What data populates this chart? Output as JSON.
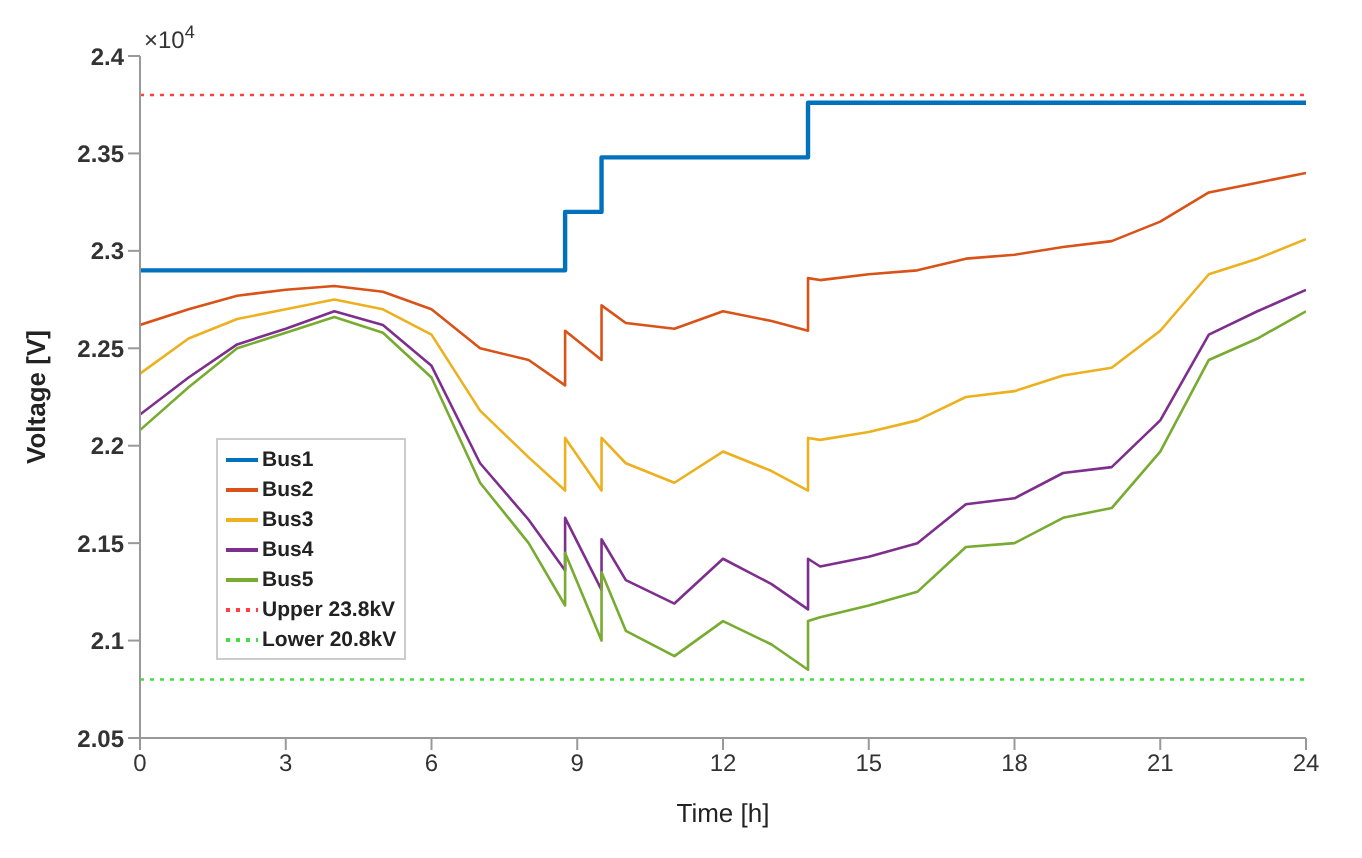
{
  "chart_data": {
    "type": "line",
    "xlabel": "Time [h]",
    "ylabel": "Voltage [V]",
    "annotations": [
      "×10$^{4}$"
    ],
    "x": [
      0,
      1,
      2,
      3,
      4,
      5,
      6,
      7,
      8,
      8.75,
      8.75,
      9.5,
      9.5,
      10,
      11,
      12,
      13,
      13.75,
      13.75,
      14,
      15,
      16,
      17,
      18,
      19,
      20,
      21,
      22,
      23,
      24
    ],
    "xlim": [
      0,
      24
    ],
    "xticks": [
      0,
      3,
      6,
      9,
      12,
      15,
      18,
      21,
      24
    ],
    "ylim": [
      2.05,
      2.4
    ],
    "yticks": [
      2.05,
      2.1,
      2.15,
      2.2,
      2.25,
      2.3,
      2.35,
      2.4
    ],
    "grid": false,
    "legend": "bottom left",
    "line_style": "solid",
    "marker": "none",
    "series": [
      {
        "name": "Bus1",
        "type": "step",
        "color": "#0072bd",
        "x": [
          0,
          8.75,
          9.5,
          13.75,
          24
        ],
        "values": [
          2.29,
          2.32,
          2.348,
          2.376,
          2.376
        ]
      },
      {
        "name": "Bus2",
        "color": "#d95319",
        "values": [
          2.262,
          2.27,
          2.277,
          2.28,
          2.282,
          2.279,
          2.27,
          2.25,
          2.244,
          2.231,
          2.259,
          2.244,
          2.272,
          2.263,
          2.26,
          2.269,
          2.264,
          2.259,
          2.286,
          2.285,
          2.288,
          2.29,
          2.296,
          2.298,
          2.302,
          2.305,
          2.315,
          2.33,
          2.335,
          2.34
        ]
      },
      {
        "name": "Bus3",
        "color": "#edb120",
        "values": [
          2.237,
          2.255,
          2.265,
          2.27,
          2.275,
          2.27,
          2.257,
          2.218,
          2.194,
          2.177,
          2.204,
          2.177,
          2.204,
          2.191,
          2.181,
          2.197,
          2.187,
          2.177,
          2.204,
          2.203,
          2.207,
          2.213,
          2.225,
          2.228,
          2.236,
          2.24,
          2.259,
          2.288,
          2.296,
          2.306
        ]
      },
      {
        "name": "Bus4",
        "color": "#7e2f8e",
        "values": [
          2.216,
          2.235,
          2.252,
          2.26,
          2.269,
          2.262,
          2.241,
          2.191,
          2.162,
          2.136,
          2.163,
          2.126,
          2.152,
          2.131,
          2.119,
          2.142,
          2.129,
          2.116,
          2.142,
          2.138,
          2.143,
          2.15,
          2.17,
          2.173,
          2.186,
          2.189,
          2.213,
          2.257,
          2.269,
          2.28
        ]
      },
      {
        "name": "Bus5",
        "color": "#77ac30",
        "values": [
          2.208,
          2.23,
          2.25,
          2.258,
          2.266,
          2.258,
          2.235,
          2.181,
          2.15,
          2.118,
          2.145,
          2.1,
          2.135,
          2.105,
          2.092,
          2.11,
          2.098,
          2.085,
          2.11,
          2.112,
          2.118,
          2.125,
          2.148,
          2.15,
          2.163,
          2.168,
          2.197,
          2.244,
          2.255,
          2.269
        ]
      },
      {
        "name": "Upper 23.8kV",
        "color": "#ff4040",
        "line_style": "dotted",
        "x": [
          0,
          24
        ],
        "values": [
          2.38,
          2.38
        ]
      },
      {
        "name": "Lower 20.8kV",
        "color": "#40e040",
        "line_style": "dotted",
        "x": [
          0,
          24
        ],
        "values": [
          2.08,
          2.08
        ]
      }
    ]
  }
}
